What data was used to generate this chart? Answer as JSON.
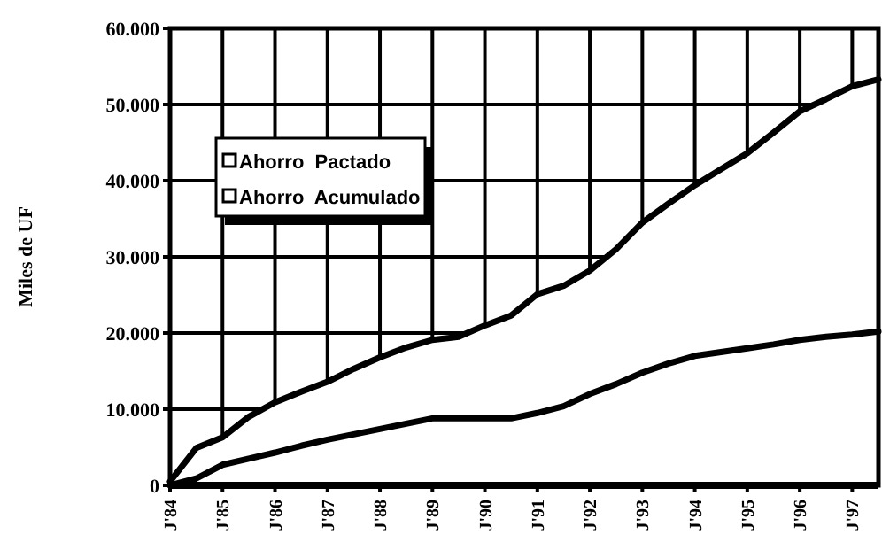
{
  "chart_data": {
    "type": "line",
    "ylabel": "Miles de UF",
    "categories": [
      "J'84",
      null,
      "J'85",
      null,
      "J'86",
      null,
      "J'87",
      null,
      "J'88",
      null,
      "J'89",
      null,
      "J'90",
      null,
      "J'91",
      null,
      "J'92",
      null,
      "J'93",
      null,
      "J'94",
      null,
      "J'95",
      null,
      "J'96",
      null,
      "J'97",
      null
    ],
    "ylim": [
      0,
      60000
    ],
    "yticks": [
      0,
      {
        "value": 10000,
        "label": "10.000"
      },
      {
        "value": 20000,
        "label": "20.000"
      },
      {
        "value": 30000,
        "label": "30.000"
      },
      {
        "value": 40000,
        "label": "40.000"
      },
      {
        "value": 50000,
        "label": "50.000"
      },
      {
        "value": 60000,
        "label": "60.000"
      }
    ],
    "grid": true,
    "legend": "left",
    "line_style": "solid",
    "series": [
      {
        "name": "Ahorro  Pactado",
        "type": "area",
        "color": "#000000",
        "values": [
          500,
          4900,
          6300,
          9000,
          10900,
          12300,
          13600,
          15300,
          16800,
          18100,
          19100,
          19500,
          21000,
          22300,
          25100,
          26200,
          28200,
          31000,
          34500,
          37000,
          39400,
          41500,
          43600,
          46300,
          49100,
          50700,
          52400,
          53300
        ]
      },
      {
        "name": "Ahorro  Acumulado",
        "color": "#000000",
        "values": [
          0,
          900,
          2700,
          3500,
          4300,
          5200,
          6000,
          6700,
          7400,
          8100,
          8800,
          8800,
          8800,
          8800,
          9500,
          10400,
          12000,
          13300,
          14800,
          16000,
          17000,
          17500,
          18000,
          18500,
          19100,
          19500,
          19800,
          20200
        ]
      }
    ]
  }
}
